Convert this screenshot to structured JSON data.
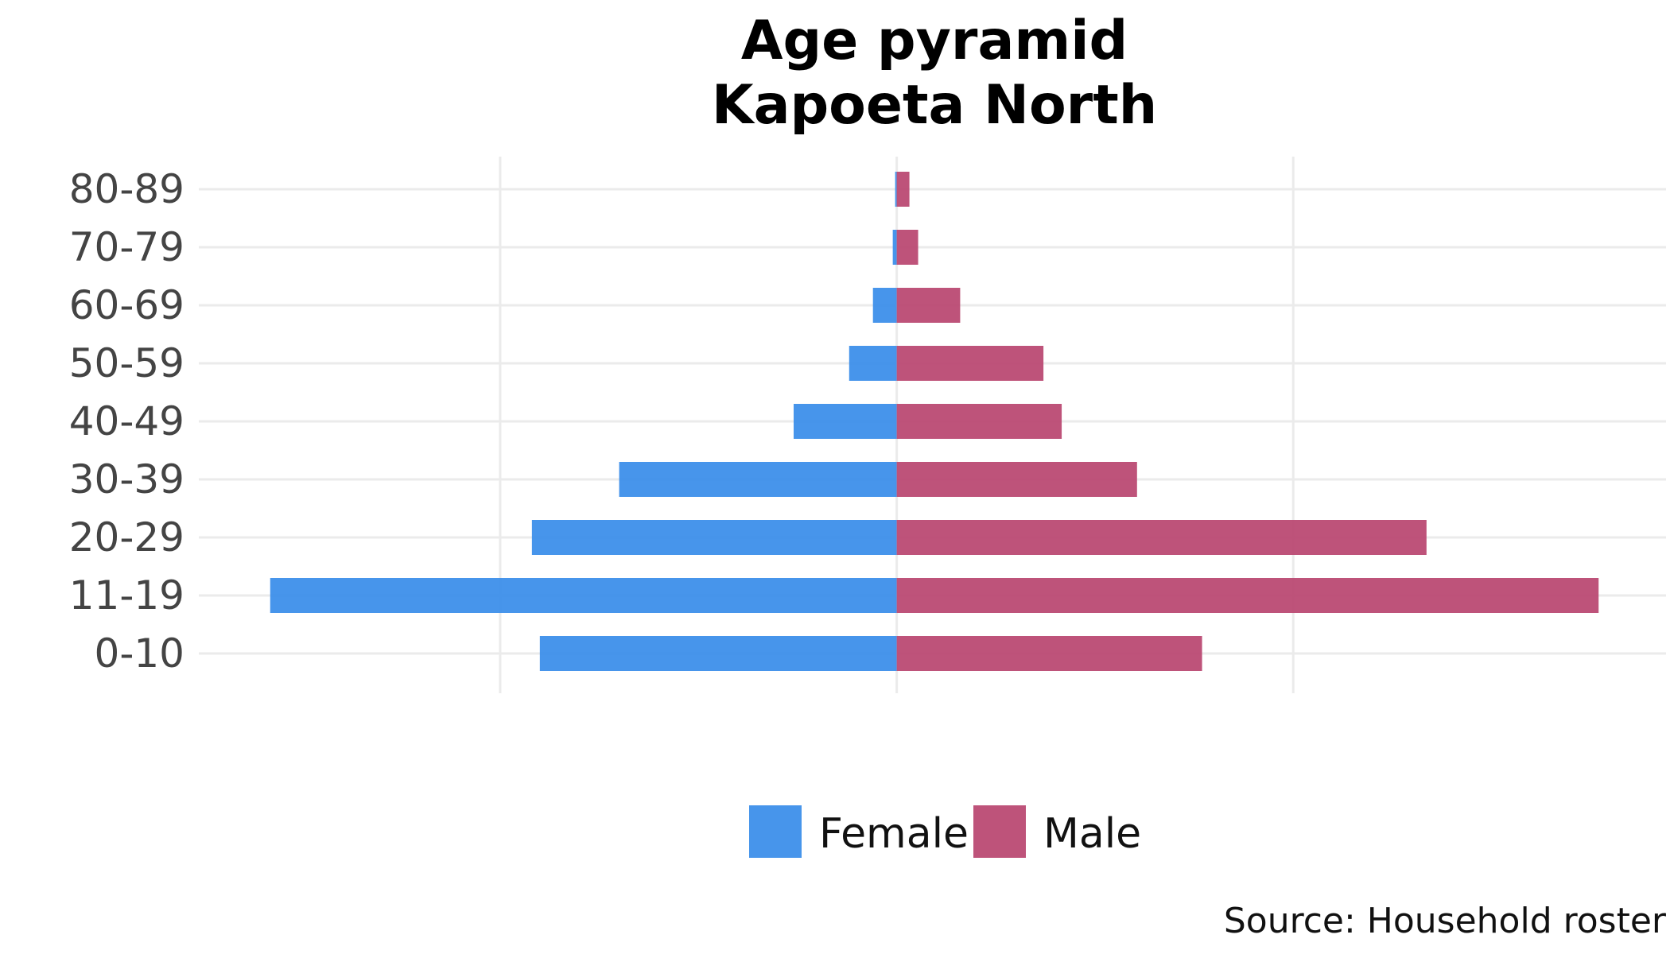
{
  "chart_data": {
    "type": "bar",
    "orientation": "horizontal",
    "subtype": "population-pyramid",
    "title": "Age pyramid",
    "subtitle": "Kapoeta North",
    "caption": "Source: Household roster",
    "categories": [
      "0-10",
      "11-19",
      "20-29",
      "30-39",
      "40-49",
      "50-59",
      "60-69",
      "70-79",
      "80-89"
    ],
    "series": [
      {
        "name": "Female",
        "color": "#3d8fea",
        "values": [
          -0.45,
          -0.79,
          -0.46,
          -0.35,
          -0.13,
          -0.06,
          -0.03,
          -0.005,
          -0.002
        ]
      },
      {
        "name": "Male",
        "color": "#bb4a73",
        "values": [
          0.385,
          0.885,
          0.668,
          0.303,
          0.208,
          0.185,
          0.08,
          0.027,
          0.016
        ]
      }
    ],
    "xlim": [
      -0.88,
      0.97
    ],
    "x_gridlines": [
      -0.5,
      0,
      0.5
    ],
    "x_tick_labels_shown": false,
    "grid": true,
    "legend_position": "bottom"
  }
}
